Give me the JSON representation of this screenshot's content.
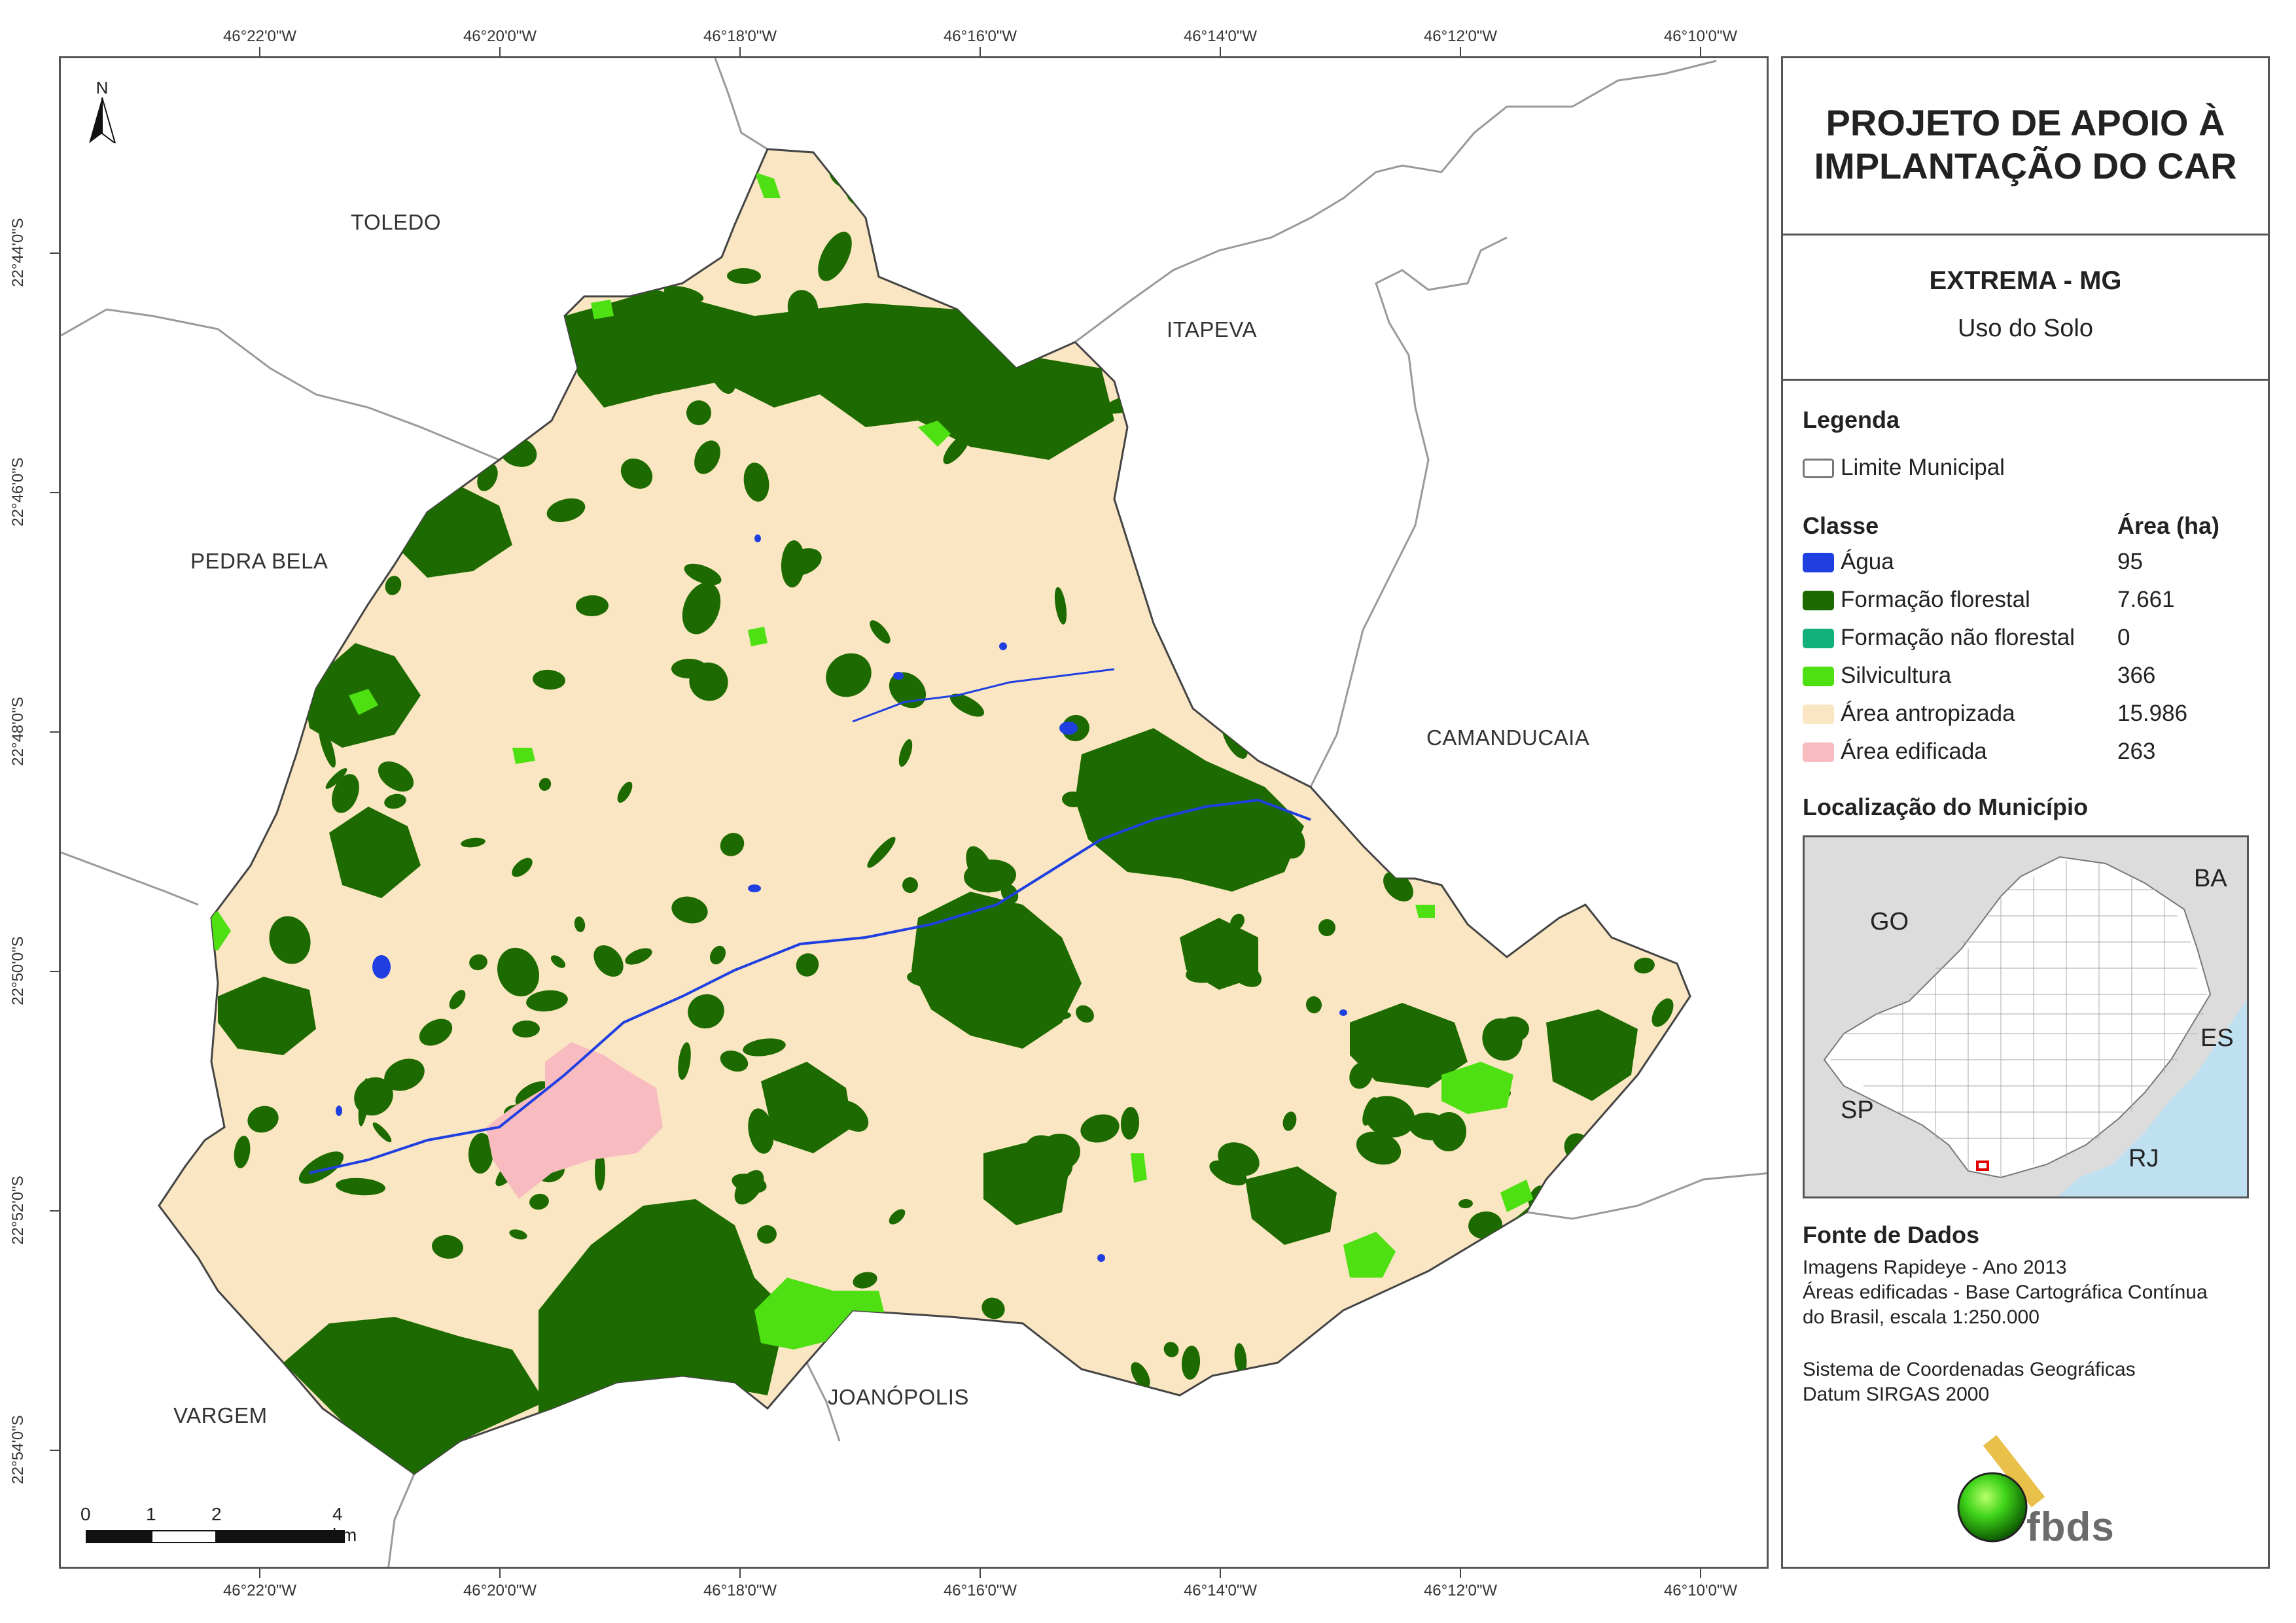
{
  "coords": {
    "longitudes": [
      "46°22'0\"W",
      "46°20'0\"W",
      "46°18'0\"W",
      "46°16'0\"W",
      "46°14'0\"W",
      "46°12'0\"W",
      "46°10'0\"W"
    ],
    "latitudes": [
      "22°44'0\"S",
      "22°46'0\"S",
      "22°48'0\"S",
      "22°50'0\"S",
      "22°52'0\"S",
      "22°54'0\"S"
    ]
  },
  "map": {
    "north_label": "N",
    "places": {
      "toledo": "TOLEDO",
      "itapeva": "ITAPEVA",
      "pedra_bela": "PEDRA BELA",
      "camanducaia": "CAMANDUCAIA",
      "vargem": "VARGEM",
      "joanopolis": "JOANÓPOLIS"
    },
    "scale_bar": {
      "labels": [
        "0",
        "1",
        "2",
        "4 km"
      ]
    },
    "colors": {
      "agua": "#1f3fe0",
      "floresta": "#1d6b00",
      "nao_florestal": "#12b07a",
      "silvicultura": "#4ee012",
      "antropizada": "#fae6c2",
      "edificada": "#f8bcc0",
      "limite": "#9a9a9a",
      "ocean": "#bfe0f0"
    }
  },
  "panel": {
    "title_line1": "PROJETO DE APOIO À",
    "title_line2": "IMPLANTAÇÃO DO CAR",
    "municipality": "EXTREMA - MG",
    "theme": "Uso do Solo",
    "legend_heading": "Legenda",
    "limit_label": "Limite Municipal",
    "class_heading": "Classe",
    "area_heading": "Área (ha)",
    "classes": [
      {
        "label": "Água",
        "area": "95",
        "color": "#1f3fe0"
      },
      {
        "label": "Formação florestal",
        "area": "7.661",
        "color": "#1d6b00"
      },
      {
        "label": "Formação não florestal",
        "area": "0",
        "color": "#12b07a"
      },
      {
        "label": "Silvicultura",
        "area": "366",
        "color": "#4ee012"
      },
      {
        "label": "Área antropizada",
        "area": "15.986",
        "color": "#fae6c2"
      },
      {
        "label": "Área edificada",
        "area": "263",
        "color": "#f8bcc0"
      }
    ],
    "location_heading": "Localização do Município",
    "states": [
      "BA",
      "GO",
      "ES",
      "SP",
      "RJ"
    ],
    "source_heading": "Fonte de Dados",
    "source_lines": [
      "Imagens Rapideye - Ano 2013",
      "Áreas edificadas - Base Cartográfica Contínua",
      "do Brasil, escala 1:250.000"
    ],
    "crs_lines": [
      "Sistema de Coordenadas Geográficas",
      "Datum SIRGAS 2000"
    ],
    "logo_text": "fbds"
  }
}
